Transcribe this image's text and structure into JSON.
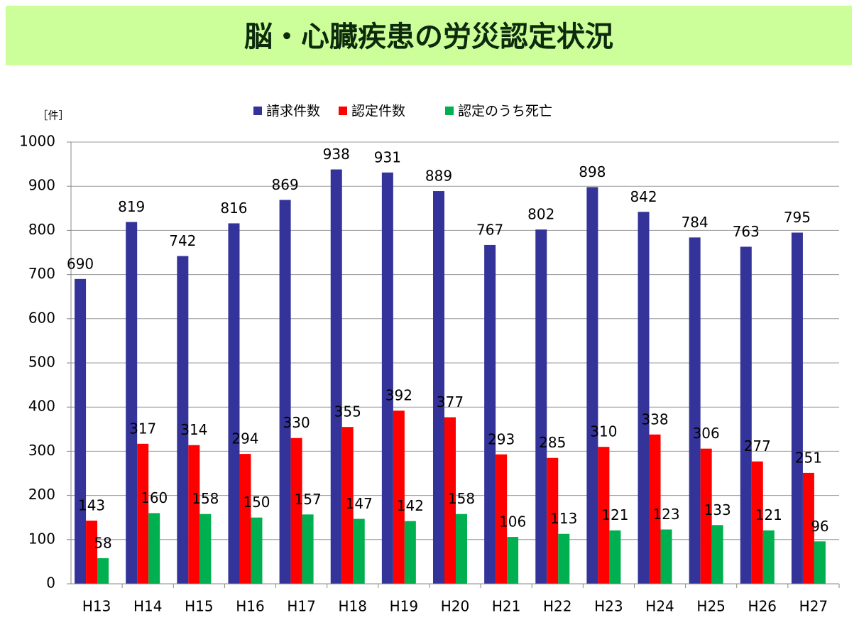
{
  "chart_data": {
    "type": "bar",
    "title": "脳・心臓疾患の労災認定状況",
    "y_label": "［件］",
    "categories": [
      "H13",
      "H14",
      "H15",
      "H16",
      "H17",
      "H18",
      "H19",
      "H20",
      "H21",
      "H22",
      "H23",
      "H24",
      "H25",
      "H26",
      "H27"
    ],
    "series": [
      {
        "name": "請求件数",
        "color": "#333399",
        "values": [
          690,
          819,
          742,
          816,
          869,
          938,
          931,
          889,
          767,
          802,
          898,
          842,
          784,
          763,
          795
        ]
      },
      {
        "name": "認定件数",
        "color": "#ff0000",
        "values": [
          143,
          317,
          314,
          294,
          330,
          355,
          392,
          377,
          293,
          285,
          310,
          338,
          306,
          277,
          251
        ]
      },
      {
        "name": "認定のうち死亡",
        "color": "#00b050",
        "values": [
          58,
          160,
          158,
          150,
          157,
          147,
          142,
          158,
          106,
          113,
          121,
          123,
          133,
          121,
          96
        ]
      }
    ],
    "ylim": [
      0,
      1000
    ],
    "yticks": [
      0,
      100,
      200,
      300,
      400,
      500,
      600,
      700,
      800,
      900,
      1000
    ],
    "grid": true,
    "legend": "top"
  }
}
